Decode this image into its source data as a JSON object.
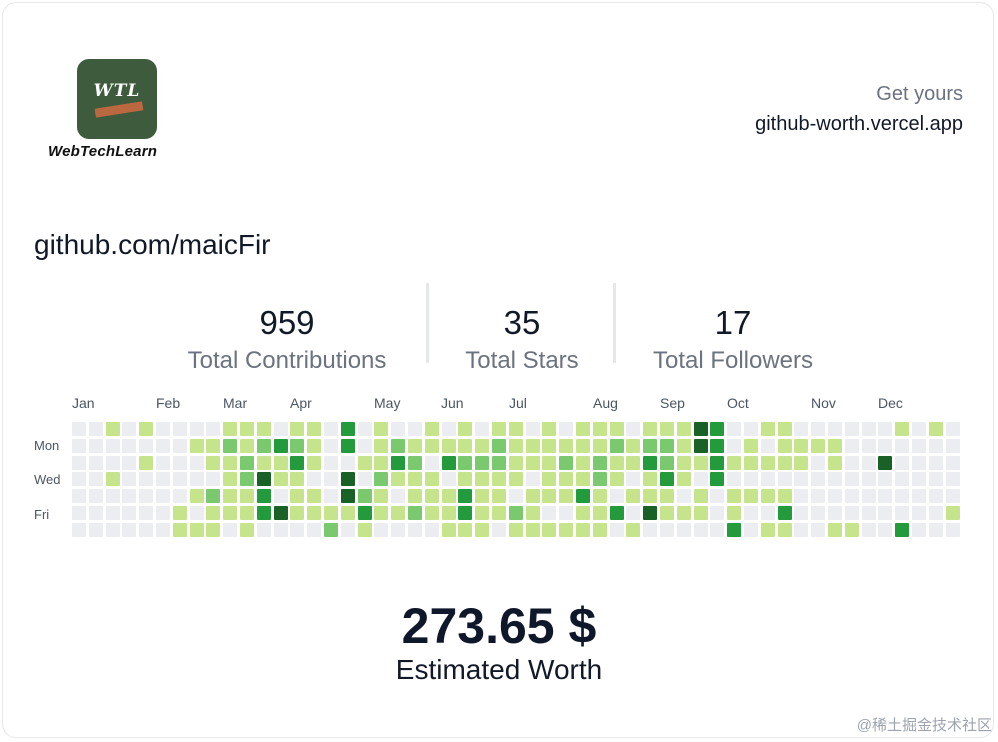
{
  "brand": {
    "logo_mark": "WTL",
    "name": "WebTechLearn"
  },
  "header": {
    "cta": "Get yours",
    "site": "github-worth.vercel.app"
  },
  "profile": {
    "url": "github.com/maicFir"
  },
  "stats": [
    {
      "value": "959",
      "label": "Total Contributions"
    },
    {
      "value": "35",
      "label": "Total Stars"
    },
    {
      "value": "17",
      "label": "Total Followers"
    }
  ],
  "calendar": {
    "months": [
      "Jan",
      "Feb",
      "Mar",
      "Apr",
      "May",
      "Jun",
      "Jul",
      "Aug",
      "Sep",
      "Oct",
      "Nov",
      "Dec"
    ],
    "day_labels": [
      "Mon",
      "Wed",
      "Fri"
    ],
    "colors": [
      "#ebedf0",
      "#c6e48b",
      "#7bc96f",
      "#239a3b",
      "#196127"
    ],
    "weeks": [
      [
        0,
        0,
        0,
        0,
        0,
        0,
        0
      ],
      [
        0,
        0,
        0,
        0,
        0,
        0,
        0
      ],
      [
        1,
        0,
        0,
        1,
        0,
        0,
        0
      ],
      [
        0,
        0,
        0,
        0,
        0,
        0,
        0
      ],
      [
        1,
        0,
        1,
        0,
        0,
        0,
        0
      ],
      [
        0,
        0,
        0,
        0,
        0,
        0,
        0
      ],
      [
        0,
        0,
        0,
        0,
        0,
        1,
        1
      ],
      [
        0,
        1,
        0,
        0,
        1,
        0,
        1
      ],
      [
        0,
        1,
        1,
        0,
        2,
        1,
        1
      ],
      [
        1,
        2,
        1,
        1,
        1,
        1,
        0
      ],
      [
        1,
        1,
        2,
        2,
        1,
        1,
        1
      ],
      [
        1,
        2,
        1,
        4,
        3,
        3,
        0
      ],
      [
        0,
        3,
        1,
        1,
        0,
        4,
        0
      ],
      [
        1,
        2,
        3,
        1,
        1,
        1,
        0
      ],
      [
        1,
        1,
        1,
        0,
        1,
        1,
        0
      ],
      [
        0,
        0,
        0,
        0,
        0,
        1,
        2
      ],
      [
        3,
        3,
        0,
        4,
        4,
        1,
        0
      ],
      [
        0,
        0,
        1,
        0,
        2,
        3,
        1
      ],
      [
        1,
        1,
        1,
        2,
        1,
        1,
        0
      ],
      [
        0,
        2,
        3,
        1,
        0,
        1,
        0
      ],
      [
        0,
        1,
        2,
        1,
        1,
        2,
        0
      ],
      [
        1,
        1,
        0,
        1,
        1,
        1,
        0
      ],
      [
        0,
        1,
        3,
        0,
        1,
        1,
        1
      ],
      [
        1,
        1,
        2,
        1,
        3,
        3,
        1
      ],
      [
        0,
        1,
        2,
        1,
        1,
        1,
        1
      ],
      [
        1,
        2,
        2,
        1,
        1,
        1,
        0
      ],
      [
        1,
        1,
        1,
        1,
        0,
        2,
        1
      ],
      [
        0,
        1,
        1,
        0,
        1,
        1,
        1
      ],
      [
        1,
        1,
        1,
        1,
        1,
        0,
        1
      ],
      [
        0,
        1,
        2,
        1,
        1,
        0,
        1
      ],
      [
        1,
        1,
        1,
        1,
        3,
        1,
        1
      ],
      [
        1,
        1,
        2,
        2,
        1,
        1,
        1
      ],
      [
        1,
        2,
        1,
        1,
        0,
        3,
        0
      ],
      [
        0,
        1,
        1,
        0,
        1,
        0,
        1
      ],
      [
        1,
        2,
        3,
        1,
        1,
        4,
        0
      ],
      [
        1,
        2,
        2,
        3,
        1,
        1,
        0
      ],
      [
        1,
        1,
        1,
        1,
        0,
        1,
        0
      ],
      [
        4,
        4,
        1,
        0,
        1,
        1,
        0
      ],
      [
        3,
        3,
        3,
        3,
        0,
        0,
        0
      ],
      [
        0,
        0,
        1,
        0,
        1,
        1,
        3
      ],
      [
        0,
        1,
        1,
        0,
        1,
        0,
        0
      ],
      [
        1,
        0,
        1,
        0,
        1,
        0,
        1
      ],
      [
        1,
        1,
        1,
        0,
        1,
        3,
        1
      ],
      [
        0,
        1,
        1,
        0,
        0,
        0,
        0
      ],
      [
        0,
        1,
        0,
        0,
        0,
        0,
        0
      ],
      [
        0,
        1,
        1,
        0,
        0,
        0,
        1
      ],
      [
        0,
        0,
        0,
        0,
        0,
        0,
        1
      ],
      [
        0,
        0,
        0,
        0,
        0,
        0,
        0
      ],
      [
        0,
        0,
        4,
        0,
        0,
        0,
        0
      ],
      [
        1,
        0,
        0,
        0,
        0,
        0,
        3
      ],
      [
        0,
        0,
        0,
        0,
        0,
        0,
        0
      ],
      [
        1,
        0,
        0,
        0,
        0,
        0,
        0
      ],
      [
        0,
        0,
        0,
        0,
        0,
        1,
        0
      ]
    ]
  },
  "worth": {
    "value": "273.65 $",
    "label": "Estimated Worth"
  },
  "watermark": "@稀土掘金技术社区"
}
